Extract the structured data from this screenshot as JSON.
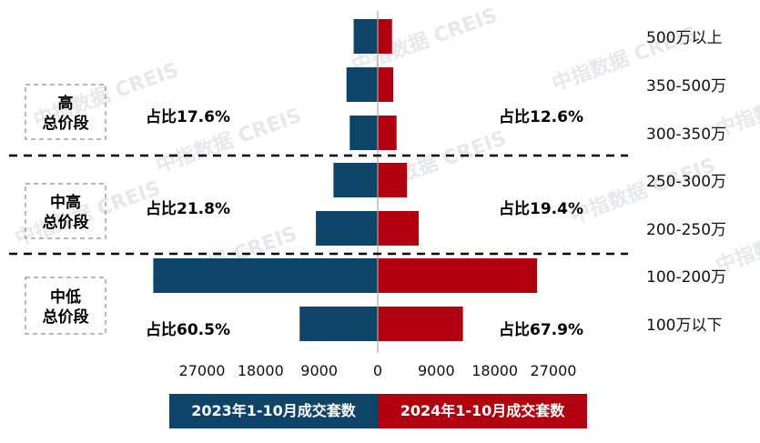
{
  "chart_data": {
    "type": "bar",
    "orientation": "horizontal-butterfly",
    "categories": [
      "500万以上",
      "350-500万",
      "300-350万",
      "250-300万",
      "200-250万",
      "100-200万",
      "100万以下"
    ],
    "series": [
      {
        "name": "2023年1-10月成交套数",
        "color": "#0e4468",
        "values": [
          3700,
          4800,
          4300,
          6800,
          9500,
          34500,
          12000
        ]
      },
      {
        "name": "2024年1-10月成交套数",
        "color": "#b00010",
        "values": [
          2200,
          2400,
          2900,
          4500,
          6300,
          24500,
          13100
        ]
      }
    ],
    "x_ticks_left": [
      "27000",
      "18000",
      "9000"
    ],
    "x_tick_zero": "0",
    "x_ticks_right": [
      "9000",
      "18000",
      "27000"
    ],
    "groups": [
      {
        "label_lines": [
          "高",
          "总价段"
        ],
        "left_share": "占比17.6%",
        "right_share": "占比12.6%"
      },
      {
        "label_lines": [
          "中高",
          "总价段"
        ],
        "left_share": "占比21.8%",
        "right_share": "占比19.4%"
      },
      {
        "label_lines": [
          "中低",
          "总价段"
        ],
        "left_share": "占比60.5%",
        "right_share": "占比67.9%"
      }
    ],
    "watermark": "中指数据 CREIS",
    "grid": false,
    "legend_position": "bottom"
  }
}
